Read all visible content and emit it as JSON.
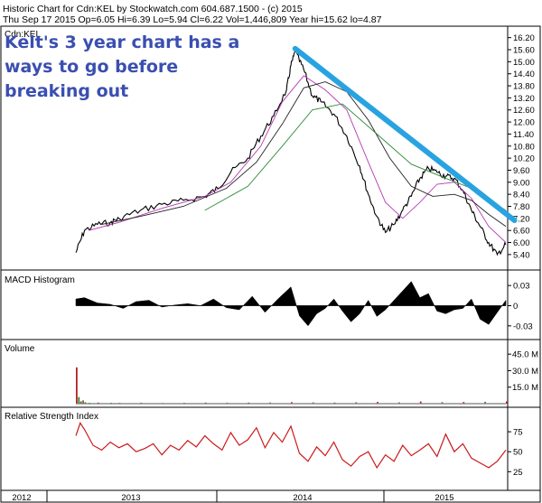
{
  "header": {
    "line1": "Historic Chart for Cdn:KEL by Stockwatch.com 604.687.1500 - (c) 2015",
    "line2": "Thu Sep 17 2015  Op=6.05  Hi=6.39  Lo=5.94  Cl=6.22  Vol=1,446,809  Year hi=15.62  lo=4.87"
  },
  "annotation": {
    "lines": [
      "Kelt's 3 year chart has a",
      "ways to go before",
      "breaking out"
    ],
    "trendline_color": "#29a3e0"
  },
  "chart_data": {
    "type": "line",
    "symbol": "Cdn:KEL",
    "x_labels": [
      "2012",
      "2013",
      "2014",
      "2015"
    ],
    "price": {
      "ylim": [
        4.9,
        16.5
      ],
      "y_ticks": [
        "16.20",
        "15.60",
        "15.00",
        "14.40",
        "13.80",
        "13.20",
        "12.60",
        "12.00",
        "11.40",
        "10.80",
        "10.20",
        "9.60",
        "9.00",
        "8.40",
        "7.80",
        "7.20",
        "6.60",
        "6.00",
        "5.40"
      ],
      "series": [
        {
          "role": "close",
          "color": "#000000",
          "x": [
            0.0,
            0.02,
            0.05,
            0.08,
            0.1,
            0.15,
            0.2,
            0.25,
            0.3,
            0.33,
            0.36,
            0.4,
            0.43,
            0.46,
            0.49,
            0.5,
            0.51,
            0.53,
            0.55,
            0.57,
            0.6,
            0.63,
            0.66,
            0.68,
            0.7,
            0.72,
            0.74,
            0.76,
            0.78,
            0.8,
            0.82,
            0.84,
            0.86,
            0.88,
            0.9,
            0.92,
            0.94,
            0.96,
            0.98,
            1.0
          ],
          "y": [
            5.5,
            6.6,
            6.9,
            7.0,
            7.2,
            7.6,
            7.9,
            8.1,
            8.3,
            8.7,
            9.5,
            10.2,
            11.3,
            12.3,
            13.6,
            14.8,
            15.5,
            14.6,
            13.3,
            13.0,
            12.4,
            11.3,
            9.8,
            8.4,
            7.3,
            6.5,
            6.9,
            7.6,
            8.3,
            9.2,
            9.7,
            9.5,
            9.3,
            9.2,
            8.6,
            7.6,
            6.8,
            6.0,
            5.4,
            5.9
          ]
        },
        {
          "role": "moving-average-short",
          "color": "#b33ab3",
          "x": [
            0.03,
            0.1,
            0.2,
            0.3,
            0.36,
            0.43,
            0.48,
            0.53,
            0.58,
            0.63,
            0.68,
            0.72,
            0.76,
            0.8,
            0.84,
            0.88,
            0.92,
            0.96,
            1.0
          ],
          "y": [
            6.6,
            7.0,
            7.7,
            8.3,
            9.0,
            10.8,
            13.0,
            14.3,
            13.6,
            12.6,
            10.0,
            8.0,
            7.2,
            8.0,
            8.9,
            9.0,
            8.2,
            6.8,
            6.0
          ]
        },
        {
          "role": "moving-average-mid",
          "color": "#222222",
          "x": [
            0.06,
            0.15,
            0.25,
            0.35,
            0.42,
            0.48,
            0.53,
            0.58,
            0.63,
            0.68,
            0.73,
            0.78,
            0.83,
            0.88,
            0.92,
            0.96,
            1.0
          ],
          "y": [
            6.9,
            7.3,
            7.8,
            8.7,
            10.0,
            11.9,
            13.7,
            14.0,
            13.5,
            12.1,
            10.2,
            8.8,
            8.3,
            8.4,
            8.1,
            7.4,
            6.8
          ]
        },
        {
          "role": "moving-average-long",
          "color": "#2f8a3a",
          "x": [
            0.3,
            0.4,
            0.48,
            0.55,
            0.62,
            0.7,
            0.78,
            0.86,
            0.92,
            0.97,
            1.0
          ],
          "y": [
            7.6,
            8.8,
            10.8,
            12.6,
            12.9,
            11.4,
            9.9,
            9.2,
            8.7,
            8.0,
            7.6
          ]
        }
      ],
      "trendline": {
        "x": [
          0.51,
          1.02
        ],
        "y": [
          15.65,
          7.1
        ]
      }
    },
    "macd": {
      "title": "MACD Histogram",
      "ylim": [
        -0.045,
        0.045
      ],
      "y_ticks": [
        "0.03",
        "0",
        "-0.03"
      ],
      "x": [
        0.0,
        0.02,
        0.05,
        0.08,
        0.11,
        0.14,
        0.17,
        0.2,
        0.23,
        0.26,
        0.29,
        0.32,
        0.35,
        0.38,
        0.41,
        0.44,
        0.47,
        0.5,
        0.52,
        0.54,
        0.56,
        0.58,
        0.6,
        0.62,
        0.64,
        0.66,
        0.68,
        0.7,
        0.72,
        0.74,
        0.76,
        0.78,
        0.8,
        0.82,
        0.84,
        0.86,
        0.88,
        0.9,
        0.92,
        0.94,
        0.96,
        0.98,
        1.0
      ],
      "values": [
        0.01,
        0.012,
        0.004,
        0.002,
        -0.004,
        0.006,
        0.008,
        -0.002,
        0.001,
        0.003,
        0.0,
        0.01,
        -0.003,
        -0.006,
        0.014,
        -0.01,
        0.01,
        0.028,
        -0.015,
        -0.03,
        -0.012,
        -0.004,
        0.01,
        -0.008,
        -0.024,
        -0.012,
        0.008,
        -0.016,
        -0.006,
        0.008,
        0.022,
        0.036,
        0.012,
        0.018,
        -0.008,
        -0.012,
        -0.006,
        -0.004,
        0.01,
        -0.02,
        -0.028,
        -0.01,
        0.008
      ]
    },
    "volume": {
      "title": "Volume",
      "ylim": [
        0,
        55
      ],
      "y_ticks": [
        "45.0 M",
        "30.0 M",
        "15.0 M"
      ],
      "x": [
        0.0,
        0.005,
        0.01,
        0.015,
        0.02,
        0.03,
        0.05,
        0.08,
        0.1,
        0.15,
        0.2,
        0.25,
        0.3,
        0.35,
        0.4,
        0.45,
        0.5,
        0.55,
        0.6,
        0.65,
        0.7,
        0.75,
        0.8,
        0.85,
        0.9,
        0.95,
        1.0
      ],
      "values": [
        33,
        6,
        2,
        3,
        1.2,
        0.8,
        1.0,
        0.8,
        0.7,
        0.9,
        0.6,
        0.8,
        1.0,
        0.9,
        1.0,
        1.1,
        1.4,
        1.2,
        1.0,
        1.3,
        1.6,
        1.2,
        2.0,
        1.4,
        1.5,
        1.7,
        2.0
      ]
    },
    "rsi": {
      "title": "Relative Strength Index",
      "ylim": [
        5,
        100
      ],
      "y_ticks": [
        "75",
        "50",
        "25"
      ],
      "x": [
        0.0,
        0.01,
        0.02,
        0.04,
        0.06,
        0.08,
        0.1,
        0.12,
        0.14,
        0.16,
        0.18,
        0.2,
        0.22,
        0.24,
        0.26,
        0.28,
        0.3,
        0.32,
        0.34,
        0.36,
        0.38,
        0.4,
        0.42,
        0.44,
        0.46,
        0.48,
        0.5,
        0.52,
        0.54,
        0.56,
        0.58,
        0.6,
        0.62,
        0.64,
        0.66,
        0.68,
        0.7,
        0.72,
        0.74,
        0.76,
        0.78,
        0.8,
        0.82,
        0.84,
        0.86,
        0.88,
        0.9,
        0.92,
        0.94,
        0.96,
        0.98,
        1.0
      ],
      "values": [
        70,
        86,
        78,
        58,
        52,
        62,
        55,
        60,
        50,
        54,
        60,
        46,
        58,
        52,
        64,
        56,
        70,
        60,
        52,
        74,
        58,
        65,
        80,
        55,
        74,
        62,
        82,
        48,
        38,
        56,
        45,
        62,
        40,
        32,
        44,
        50,
        30,
        46,
        38,
        58,
        45,
        52,
        60,
        44,
        72,
        50,
        60,
        42,
        36,
        30,
        38,
        52
      ]
    }
  }
}
